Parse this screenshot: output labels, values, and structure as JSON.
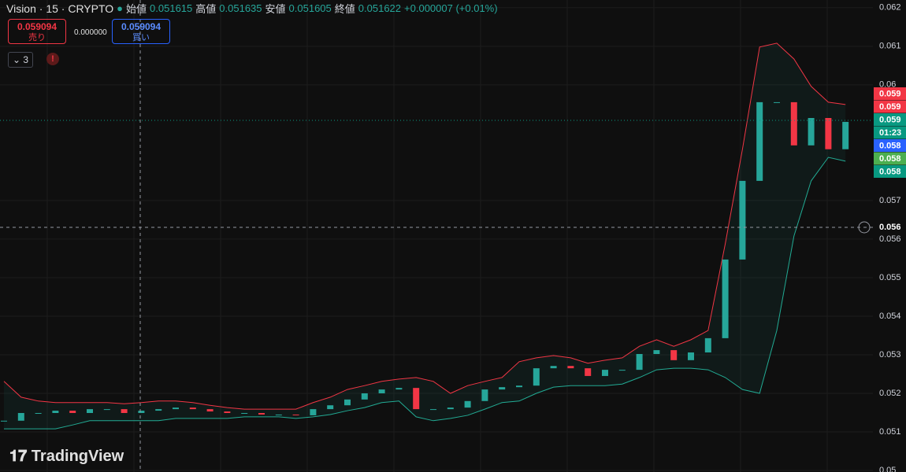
{
  "header": {
    "symbol": "Vision · 15 · CRYPTO",
    "open_label": "始値",
    "open": "0.051615",
    "high_label": "高値",
    "high": "0.051635",
    "low_label": "安値",
    "low": "0.051605",
    "close_label": "終値",
    "close": "0.051622",
    "change": "+0.000007 (+0.01%)"
  },
  "trade": {
    "sell_price": "0.059094",
    "sell_label": "売り",
    "spread": "0.000000",
    "buy_price": "0.059094",
    "buy_label": "買い"
  },
  "indicators_count": "3",
  "chart_data": {
    "type": "candlestick",
    "closes": [
      0.05129,
      0.05149,
      0.05149,
      0.05155,
      0.05149,
      0.05159,
      0.05159,
      0.05149,
      0.05155,
      0.05159,
      0.05163,
      0.05159,
      0.05153,
      0.05149,
      0.05149,
      0.05145,
      0.05145,
      0.05143,
      0.05159,
      0.05169,
      0.05184,
      0.052,
      0.0521,
      0.05214,
      0.05159,
      0.05159,
      0.05163,
      0.0518,
      0.0521,
      0.05216,
      0.0522,
      0.05265,
      0.05271,
      0.05265,
      0.05245,
      0.05261,
      0.05261,
      0.05302,
      0.05312,
      0.05286,
      0.05306,
      0.05343,
      0.05547,
      0.05751,
      0.05955,
      0.05955,
      0.05843,
      0.05914,
      0.05833,
      0.05904
    ],
    "upper_band": [
      0.05231,
      0.0519,
      0.0518,
      0.05176,
      0.05176,
      0.05176,
      0.05176,
      0.05173,
      0.05176,
      0.0518,
      0.0518,
      0.05176,
      0.05169,
      0.05163,
      0.05159,
      0.05159,
      0.05159,
      0.05159,
      0.05176,
      0.0519,
      0.0521,
      0.0522,
      0.05231,
      0.05237,
      0.05241,
      0.05231,
      0.052,
      0.0522,
      0.05231,
      0.05241,
      0.05282,
      0.05292,
      0.05298,
      0.05292,
      0.05278,
      0.05286,
      0.05292,
      0.05322,
      0.05339,
      0.05322,
      0.05339,
      0.05363,
      0.05588,
      0.05833,
      0.06098,
      0.06108,
      0.06067,
      0.05996,
      0.05955,
      0.05949
    ],
    "lower_band": [
      0.05108,
      0.05108,
      0.05108,
      0.05108,
      0.05118,
      0.05129,
      0.05129,
      0.05129,
      0.05129,
      0.05129,
      0.05135,
      0.05135,
      0.05135,
      0.05135,
      0.05139,
      0.05139,
      0.05139,
      0.05135,
      0.05139,
      0.05145,
      0.05155,
      0.05163,
      0.05176,
      0.0518,
      0.05139,
      0.05129,
      0.05135,
      0.05143,
      0.05159,
      0.05176,
      0.0518,
      0.052,
      0.05216,
      0.0522,
      0.0522,
      0.0522,
      0.05224,
      0.05241,
      0.05261,
      0.05265,
      0.05265,
      0.05261,
      0.05241,
      0.0521,
      0.052,
      0.05363,
      0.05608,
      0.05751,
      0.05812,
      0.05802
    ],
    "ylim": [
      0.04996,
      0.0622
    ],
    "yticks": [
      0.062,
      0.061,
      0.06,
      0.057,
      0.056,
      0.055,
      0.054,
      0.053,
      0.052,
      0.051,
      0.05
    ],
    "up_color": "#26a69a",
    "down_color": "#f23645",
    "upper_color": "#f23645",
    "lower_color": "#22ab94"
  },
  "price_tags": [
    {
      "label": "0.059",
      "color": "#f23645"
    },
    {
      "label": "0.059",
      "color": "#f23645"
    },
    {
      "label": "0.059",
      "color": "#089981"
    },
    {
      "label": "01:23",
      "color": "#089981"
    },
    {
      "label": "0.058",
      "color": "#2962ff"
    },
    {
      "label": "0.058",
      "color": "#4caf50"
    },
    {
      "label": "0.058",
      "color": "#089981"
    }
  ],
  "crosshair_label": "0.056",
  "brand": "TradingView"
}
